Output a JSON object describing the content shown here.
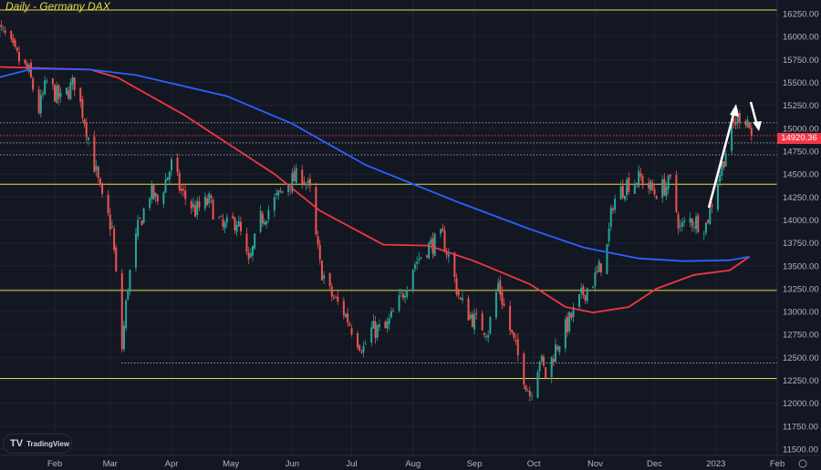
{
  "chart_data": {
    "type": "candlestick",
    "title": "Daily - Germany DAX",
    "ylim": [
      11400,
      16300
    ],
    "y_ticks": [
      16250,
      16000,
      15750,
      15500,
      15250,
      15000,
      14750,
      14500,
      14250,
      14000,
      13750,
      13500,
      13250,
      13000,
      12750,
      12500,
      12250,
      12000,
      11750,
      11500
    ],
    "y_tick_labels": [
      "16250.00",
      "16000.00",
      "15750.00",
      "15500.00",
      "15250.00",
      "15000.00",
      "14750.00",
      "14500.00",
      "14250.00",
      "14000.00",
      "13750.00",
      "13500.00",
      "13250.00",
      "13000.00",
      "12750.00",
      "12500.00",
      "12250.00",
      "12000.00",
      "11750.00",
      "11500.00"
    ],
    "x_ticks": [
      {
        "date": "2022-02-01",
        "label": "Feb"
      },
      {
        "date": "2022-03-01",
        "label": "Mar"
      },
      {
        "date": "2022-04-01",
        "label": "Apr"
      },
      {
        "date": "2022-05-01",
        "label": "May"
      },
      {
        "date": "2022-06-01",
        "label": "Jun"
      },
      {
        "date": "2022-07-01",
        "label": "Jul"
      },
      {
        "date": "2022-08-01",
        "label": "Aug"
      },
      {
        "date": "2022-09-01",
        "label": "Sep"
      },
      {
        "date": "2022-10-01",
        "label": "Oct"
      },
      {
        "date": "2022-11-01",
        "label": "Nov"
      },
      {
        "date": "2022-12-01",
        "label": "Dec"
      },
      {
        "date": "2023-01-01",
        "label": "2023"
      },
      {
        "date": "2023-02-01",
        "label": "Feb"
      }
    ],
    "last_price": 14920.36,
    "last_price_label": "14920.36",
    "colors": {
      "up": "#26a69a",
      "down": "#ef5350",
      "ma_fast": "#f23645",
      "ma_slow": "#2962ff",
      "levels": "#e6d94a",
      "background": "#131722"
    },
    "grid": true,
    "close_path": [
      [
        "2022-01-03",
        16100
      ],
      [
        "2022-01-07",
        16000
      ],
      [
        "2022-01-12",
        15800
      ],
      [
        "2022-01-19",
        15600
      ],
      [
        "2022-01-24",
        15200
      ],
      [
        "2022-01-28",
        15500
      ],
      [
        "2022-02-04",
        15300
      ],
      [
        "2022-02-11",
        15500
      ],
      [
        "2022-02-16",
        15100
      ],
      [
        "2022-02-21",
        14600
      ],
      [
        "2022-02-25",
        14200
      ],
      [
        "2022-03-02",
        13900
      ],
      [
        "2022-03-07",
        12600
      ],
      [
        "2022-03-10",
        13300
      ],
      [
        "2022-03-15",
        13900
      ],
      [
        "2022-03-21",
        14300
      ],
      [
        "2022-03-25",
        14200
      ],
      [
        "2022-04-01",
        14600
      ],
      [
        "2022-04-06",
        14300
      ],
      [
        "2022-04-13",
        14100
      ],
      [
        "2022-04-20",
        14200
      ],
      [
        "2022-04-27",
        13900
      ],
      [
        "2022-05-04",
        14000
      ],
      [
        "2022-05-10",
        13500
      ],
      [
        "2022-05-16",
        14000
      ],
      [
        "2022-05-23",
        14200
      ],
      [
        "2022-05-30",
        14400
      ],
      [
        "2022-06-06",
        14500
      ],
      [
        "2022-06-10",
        14300
      ],
      [
        "2022-06-13",
        13800
      ],
      [
        "2022-06-15",
        13500
      ],
      [
        "2022-06-20",
        13200
      ],
      [
        "2022-06-27",
        13000
      ],
      [
        "2022-07-04",
        12700
      ],
      [
        "2022-07-07",
        12600
      ],
      [
        "2022-07-11",
        12800
      ],
      [
        "2022-07-18",
        12800
      ],
      [
        "2022-07-25",
        13100
      ],
      [
        "2022-08-01",
        13500
      ],
      [
        "2022-08-08",
        13700
      ],
      [
        "2022-08-16",
        13800
      ],
      [
        "2022-08-19",
        13600
      ],
      [
        "2022-08-25",
        13100
      ],
      [
        "2022-09-01",
        12900
      ],
      [
        "2022-09-08",
        12800
      ],
      [
        "2022-09-13",
        13300
      ],
      [
        "2022-09-19",
        12800
      ],
      [
        "2022-09-26",
        12300
      ],
      [
        "2022-09-29",
        12100
      ],
      [
        "2022-10-04",
        12500
      ],
      [
        "2022-10-07",
        12300
      ],
      [
        "2022-10-12",
        12600
      ],
      [
        "2022-10-19",
        12900
      ],
      [
        "2022-10-26",
        13200
      ],
      [
        "2022-11-02",
        13400
      ],
      [
        "2022-11-07",
        13700
      ],
      [
        "2022-11-10",
        14200
      ],
      [
        "2022-11-17",
        14400
      ],
      [
        "2022-11-24",
        14450
      ],
      [
        "2022-12-01",
        14300
      ],
      [
        "2022-12-09",
        14400
      ],
      [
        "2022-12-14",
        13900
      ],
      [
        "2022-12-19",
        14000
      ],
      [
        "2022-12-27",
        13950
      ],
      [
        "2022-12-30",
        14200
      ],
      [
        "2023-01-04",
        14600
      ],
      [
        "2023-01-09",
        15000
      ],
      [
        "2023-01-13",
        15150
      ],
      [
        "2023-01-17",
        15100
      ],
      [
        "2023-01-19",
        14920.36
      ]
    ],
    "ma_fast": [
      [
        "2022-01-03",
        15670
      ],
      [
        "2022-02-19",
        15640
      ],
      [
        "2022-03-05",
        15550
      ],
      [
        "2022-04-07",
        15150
      ],
      [
        "2022-05-23",
        14500
      ],
      [
        "2022-06-15",
        14100
      ],
      [
        "2022-07-17",
        13730
      ],
      [
        "2022-08-09",
        13720
      ],
      [
        "2022-09-01",
        13550
      ],
      [
        "2022-09-29",
        13300
      ],
      [
        "2022-10-17",
        13050
      ],
      [
        "2022-10-31",
        12990
      ],
      [
        "2022-11-18",
        13050
      ],
      [
        "2022-12-02",
        13250
      ],
      [
        "2022-12-21",
        13400
      ],
      [
        "2023-01-08",
        13450
      ],
      [
        "2023-01-18",
        13600
      ]
    ],
    "ma_slow": [
      [
        "2022-01-03",
        15550
      ],
      [
        "2022-01-21",
        15650
      ],
      [
        "2022-02-19",
        15640
      ],
      [
        "2022-03-14",
        15580
      ],
      [
        "2022-04-29",
        15350
      ],
      [
        "2022-06-01",
        15050
      ],
      [
        "2022-07-08",
        14600
      ],
      [
        "2022-08-23",
        14200
      ],
      [
        "2022-09-29",
        13900
      ],
      [
        "2022-10-26",
        13700
      ],
      [
        "2022-11-23",
        13580
      ],
      [
        "2022-12-16",
        13550
      ],
      [
        "2023-01-08",
        13560
      ],
      [
        "2023-01-18",
        13600
      ]
    ],
    "horizontal_levels": [
      16290,
      14390,
      13230,
      12270
    ],
    "dotted_levels": [
      15060,
      14840,
      14710,
      12440
    ]
  },
  "branding": {
    "logo_text": "TradingView"
  }
}
